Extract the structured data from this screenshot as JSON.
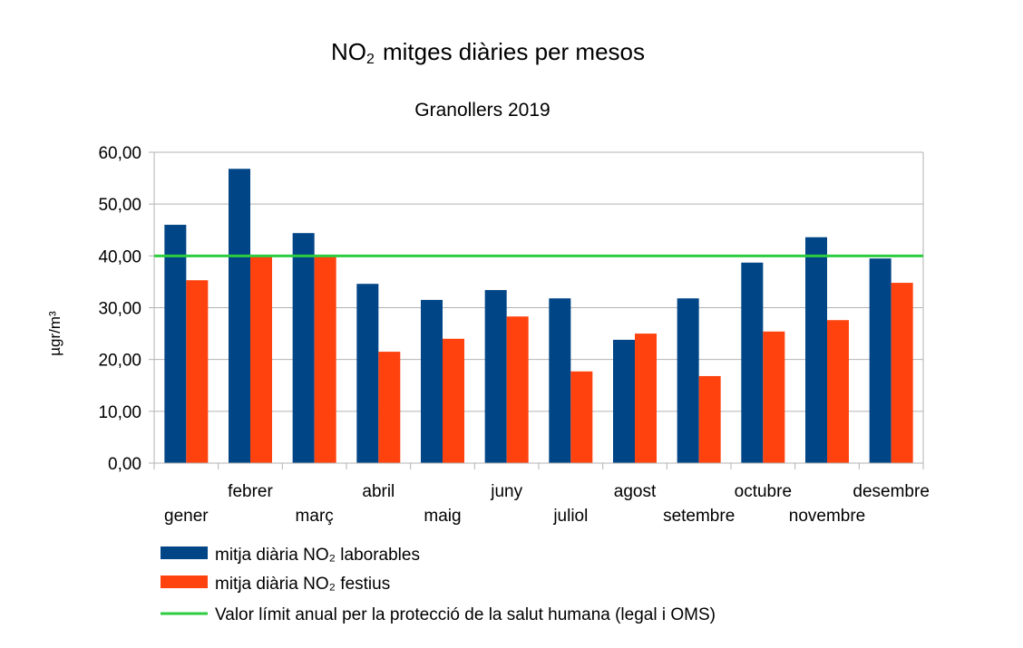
{
  "chart_data": {
    "type": "bar",
    "title_main": "NO",
    "title_sub_script": "2",
    "title_rest": "mitges diàries per mesos",
    "subtitle": "Granollers 2019",
    "ylabel": "µgr/m³",
    "xlabel": "",
    "ylim": [
      0,
      60
    ],
    "yticks": [
      "0,00",
      "10,00",
      "20,00",
      "30,00",
      "40,00",
      "50,00",
      "60,00"
    ],
    "grid": true,
    "legend_position": "bottom",
    "categories": [
      "gener",
      "febrer",
      "març",
      "abril",
      "maig",
      "juny",
      "juliol",
      "agost",
      "setembre",
      "octubre",
      "novembre",
      "desembre"
    ],
    "series": [
      {
        "name": "mitja diària NO₂  laborables",
        "color": "#004586",
        "values": [
          46.0,
          56.8,
          44.4,
          34.6,
          31.5,
          33.4,
          31.8,
          23.8,
          31.8,
          38.7,
          43.6,
          39.5
        ]
      },
      {
        "name": "mitja diària NO₂  festius",
        "color": "#ff420e",
        "values": [
          35.3,
          39.9,
          39.9,
          21.5,
          24.0,
          28.3,
          17.7,
          25.0,
          16.8,
          25.4,
          27.6,
          34.8
        ]
      }
    ],
    "reference_line": {
      "name": "Valor límit anual per la protecció de la salut humana (legal i OMS)",
      "value": 40,
      "color": "#2ecc40"
    }
  }
}
